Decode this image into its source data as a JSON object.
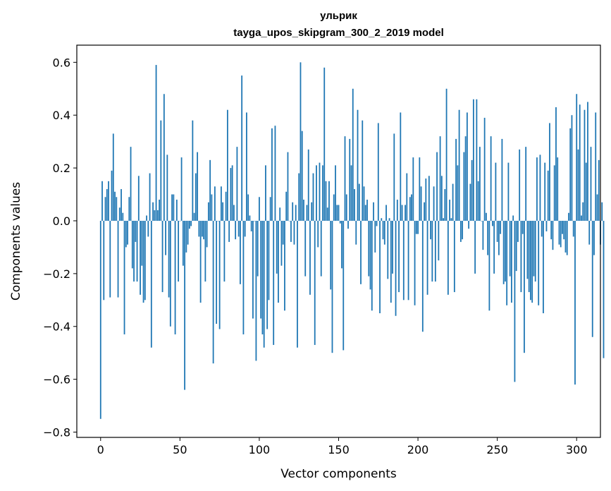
{
  "chart_data": {
    "type": "bar",
    "title": "ульрик",
    "subtitle": "tayga_upos_skipgram_300_2_2019 model",
    "xlabel": "Vector components",
    "ylabel": "Components values",
    "xlim": [
      -15,
      315
    ],
    "ylim": [
      -0.82,
      0.665
    ],
    "xticks": [
      0,
      50,
      100,
      150,
      200,
      250,
      300
    ],
    "xtick_labels": [
      "0",
      "50",
      "100",
      "150",
      "200",
      "250",
      "300"
    ],
    "yticks": [
      -0.8,
      -0.6,
      -0.4,
      -0.2,
      0.0,
      0.2,
      0.4,
      0.6
    ],
    "ytick_labels": [
      "−0.8",
      "−0.6",
      "−0.4",
      "−0.2",
      "0.0",
      "0.2",
      "0.4",
      "0.6"
    ],
    "bar_color": "#1f77b4",
    "values": [
      -0.75,
      0.15,
      -0.3,
      0.09,
      0.12,
      0.15,
      -0.29,
      0.19,
      0.33,
      0.11,
      0.09,
      -0.29,
      0.05,
      0.12,
      0.03,
      -0.43,
      -0.1,
      -0.09,
      0.09,
      0.28,
      -0.18,
      -0.23,
      -0.08,
      -0.23,
      0.17,
      -0.28,
      -0.17,
      -0.31,
      -0.3,
      0.02,
      -0.06,
      0.18,
      -0.48,
      0.07,
      0.04,
      0.59,
      0.04,
      0.08,
      0.38,
      -0.27,
      0.48,
      -0.13,
      0.25,
      -0.29,
      -0.4,
      0.1,
      0.1,
      -0.43,
      0.08,
      -0.23,
      0.0,
      0.24,
      -0.17,
      -0.64,
      -0.12,
      -0.09,
      -0.03,
      -0.02,
      0.38,
      0.03,
      0.18,
      0.26,
      -0.06,
      -0.31,
      -0.06,
      -0.07,
      -0.23,
      -0.1,
      0.07,
      0.23,
      0.1,
      -0.54,
      0.13,
      -0.39,
      0.0,
      -0.41,
      0.13,
      0.07,
      -0.23,
      0.11,
      0.42,
      -0.08,
      0.2,
      0.21,
      0.06,
      -0.07,
      0.28,
      -0.06,
      -0.24,
      0.55,
      -0.43,
      -0.06,
      0.41,
      0.1,
      0.02,
      -0.04,
      -0.37,
      0.0,
      -0.53,
      -0.21,
      0.09,
      -0.37,
      -0.43,
      -0.48,
      0.21,
      -0.41,
      -0.3,
      0.09,
      0.35,
      -0.47,
      0.36,
      -0.2,
      -0.31,
      0.05,
      -0.17,
      -0.09,
      -0.34,
      0.11,
      0.26,
      0.0,
      -0.08,
      0.07,
      -0.09,
      0.06,
      -0.48,
      0.18,
      0.6,
      0.34,
      0.08,
      -0.21,
      0.06,
      0.27,
      -0.28,
      0.07,
      0.18,
      -0.47,
      0.21,
      -0.1,
      0.22,
      -0.21,
      0.21,
      0.58,
      0.15,
      0.05,
      0.15,
      -0.26,
      -0.5,
      0.1,
      0.21,
      0.06,
      0.06,
      -0.01,
      -0.18,
      -0.49,
      0.32,
      0.1,
      -0.03,
      0.31,
      0.21,
      0.5,
      0.12,
      -0.09,
      0.42,
      0.14,
      -0.24,
      0.38,
      0.13,
      0.06,
      0.08,
      -0.21,
      -0.26,
      -0.34,
      0.07,
      -0.12,
      -0.02,
      0.37,
      -0.35,
      0.01,
      -0.07,
      -0.09,
      0.06,
      -0.22,
      0.01,
      -0.31,
      -0.2,
      0.33,
      -0.36,
      0.08,
      -0.27,
      0.41,
      0.06,
      -0.3,
      0.06,
      0.18,
      -0.3,
      0.09,
      0.1,
      0.24,
      -0.32,
      -0.05,
      -0.05,
      0.24,
      0.13,
      -0.42,
      0.07,
      0.16,
      -0.28,
      0.17,
      -0.07,
      -0.23,
      0.13,
      -0.23,
      0.26,
      -0.15,
      0.32,
      0.17,
      0.01,
      0.12,
      0.5,
      -0.28,
      0.08,
      0.01,
      0.14,
      -0.27,
      0.31,
      0.21,
      0.42,
      -0.08,
      -0.07,
      0.26,
      0.32,
      0.41,
      -0.03,
      0.14,
      0.23,
      0.46,
      -0.2,
      0.46,
      0.15,
      0.28,
      0.0,
      -0.11,
      0.39,
      0.03,
      -0.13,
      -0.34,
      0.32,
      -0.02,
      -0.2,
      0.22,
      -0.08,
      -0.13,
      -0.05,
      0.31,
      -0.24,
      -0.23,
      -0.32,
      0.22,
      -0.21,
      -0.31,
      0.02,
      -0.61,
      -0.19,
      -0.08,
      0.27,
      -0.27,
      -0.05,
      -0.5,
      0.28,
      -0.22,
      -0.27,
      -0.3,
      -0.31,
      -0.21,
      -0.23,
      0.24,
      -0.32,
      0.25,
      -0.06,
      -0.35,
      0.22,
      -0.04,
      0.19,
      0.37,
      -0.07,
      -0.11,
      0.21,
      0.43,
      0.24,
      -0.09,
      -0.1,
      -0.05,
      -0.07,
      -0.12,
      -0.13,
      0.03,
      0.35,
      0.4,
      -0.06,
      -0.62,
      0.48,
      0.27,
      0.44,
      0.02,
      0.07,
      0.42,
      0.22,
      0.45,
      -0.09,
      0.28,
      -0.44,
      -0.13,
      0.41,
      0.1,
      0.23,
      -0.09,
      0.07,
      -0.52
    ]
  }
}
